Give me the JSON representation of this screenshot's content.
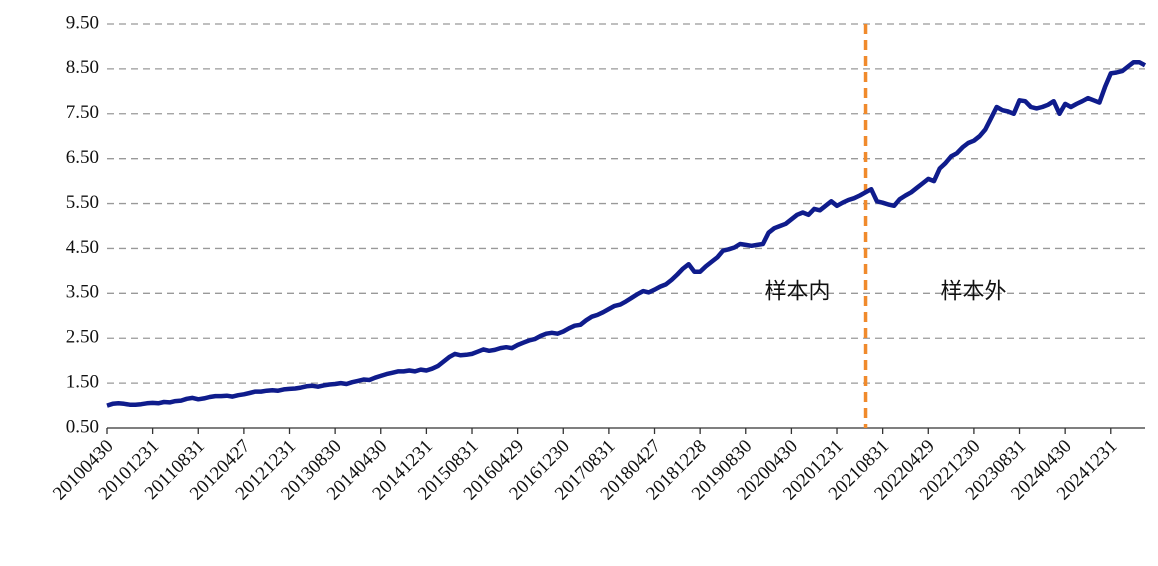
{
  "chart_data": {
    "type": "line",
    "categories": [
      "20100430",
      null,
      null,
      null,
      null,
      null,
      null,
      null,
      "20101231",
      null,
      null,
      null,
      null,
      null,
      null,
      null,
      "20110831",
      null,
      null,
      null,
      null,
      null,
      null,
      null,
      "20120427",
      null,
      null,
      null,
      null,
      null,
      null,
      null,
      "20121231",
      null,
      null,
      null,
      null,
      null,
      null,
      null,
      "20130830",
      null,
      null,
      null,
      null,
      null,
      null,
      null,
      "20140430",
      null,
      null,
      null,
      null,
      null,
      null,
      null,
      "20141231",
      null,
      null,
      null,
      null,
      null,
      null,
      null,
      "20150831",
      null,
      null,
      null,
      null,
      null,
      null,
      null,
      "20160429",
      null,
      null,
      null,
      null,
      null,
      null,
      null,
      "20161230",
      null,
      null,
      null,
      null,
      null,
      null,
      null,
      "20170831",
      null,
      null,
      null,
      null,
      null,
      null,
      null,
      "20180427",
      null,
      null,
      null,
      null,
      null,
      null,
      null,
      "20181228",
      null,
      null,
      null,
      null,
      null,
      null,
      null,
      "20190830",
      null,
      null,
      null,
      null,
      null,
      null,
      null,
      "20200430",
      null,
      null,
      null,
      null,
      null,
      null,
      null,
      "20201231",
      null,
      null,
      null,
      null,
      null,
      null,
      null,
      "20210831",
      null,
      null,
      null,
      null,
      null,
      null,
      null,
      "20220429",
      null,
      null,
      null,
      null,
      null,
      null,
      null,
      "20221230",
      null,
      null,
      null,
      null,
      null,
      null,
      null,
      "20230831",
      null,
      null,
      null,
      null,
      null,
      null,
      null,
      "20240430",
      null,
      null,
      null,
      null,
      null,
      null,
      null,
      "20241231",
      null,
      null,
      null,
      null,
      null,
      null
    ],
    "values": [
      1.0,
      1.04,
      1.05,
      1.04,
      1.02,
      1.02,
      1.03,
      1.05,
      1.06,
      1.05,
      1.08,
      1.07,
      1.1,
      1.11,
      1.15,
      1.17,
      1.14,
      1.16,
      1.19,
      1.21,
      1.21,
      1.22,
      1.2,
      1.23,
      1.25,
      1.28,
      1.31,
      1.31,
      1.33,
      1.34,
      1.33,
      1.36,
      1.37,
      1.38,
      1.4,
      1.43,
      1.44,
      1.42,
      1.45,
      1.47,
      1.48,
      1.5,
      1.48,
      1.52,
      1.55,
      1.58,
      1.57,
      1.62,
      1.66,
      1.7,
      1.73,
      1.76,
      1.76,
      1.78,
      1.76,
      1.8,
      1.78,
      1.82,
      1.88,
      1.98,
      2.08,
      2.15,
      2.12,
      2.13,
      2.15,
      2.2,
      2.25,
      2.22,
      2.24,
      2.28,
      2.3,
      2.28,
      2.35,
      2.4,
      2.45,
      2.48,
      2.55,
      2.6,
      2.62,
      2.6,
      2.65,
      2.72,
      2.78,
      2.8,
      2.9,
      2.98,
      3.02,
      3.08,
      3.15,
      3.22,
      3.25,
      3.32,
      3.4,
      3.48,
      3.55,
      3.52,
      3.58,
      3.65,
      3.7,
      3.8,
      3.92,
      4.05,
      4.15,
      3.98,
      3.98,
      4.1,
      4.2,
      4.3,
      4.45,
      4.48,
      4.52,
      4.6,
      4.58,
      4.56,
      4.58,
      4.6,
      4.85,
      4.95,
      5.0,
      5.05,
      5.15,
      5.25,
      5.3,
      5.25,
      5.38,
      5.35,
      5.45,
      5.55,
      5.45,
      5.52,
      5.58,
      5.62,
      5.68,
      5.75,
      5.82,
      5.55,
      5.52,
      5.48,
      5.45,
      5.6,
      5.68,
      5.75,
      5.85,
      5.95,
      6.05,
      6.0,
      6.28,
      6.4,
      6.55,
      6.62,
      6.75,
      6.85,
      6.9,
      7.0,
      7.15,
      7.4,
      7.65,
      7.58,
      7.55,
      7.5,
      7.8,
      7.78,
      7.65,
      7.62,
      7.65,
      7.7,
      7.78,
      7.5,
      7.72,
      7.65,
      7.72,
      7.78,
      7.85,
      7.8,
      7.75,
      8.1,
      8.4,
      8.42,
      8.45,
      8.55,
      8.65,
      8.65,
      8.58
    ],
    "color": "#0f1c8c",
    "ylim": [
      0.5,
      9.5
    ],
    "yticks": [
      {
        "value": 0.5,
        "label": "0.50"
      },
      {
        "value": 1.5,
        "label": "1.50"
      },
      {
        "value": 2.5,
        "label": "2.50"
      },
      {
        "value": 3.5,
        "label": "3.50"
      },
      {
        "value": 4.5,
        "label": "4.50"
      },
      {
        "value": 5.5,
        "label": "5.50"
      },
      {
        "value": 6.5,
        "label": "6.50"
      },
      {
        "value": 7.5,
        "label": "7.50"
      },
      {
        "value": 8.5,
        "label": "8.50"
      },
      {
        "value": 9.5,
        "label": "9.50"
      }
    ],
    "grid": true,
    "divider": {
      "index": 133,
      "color": "#f08a2c"
    },
    "annotations": [
      {
        "text": "样本内",
        "color": "#d9342b"
      },
      {
        "text": "样本外",
        "color": "#d9342b"
      }
    ]
  }
}
